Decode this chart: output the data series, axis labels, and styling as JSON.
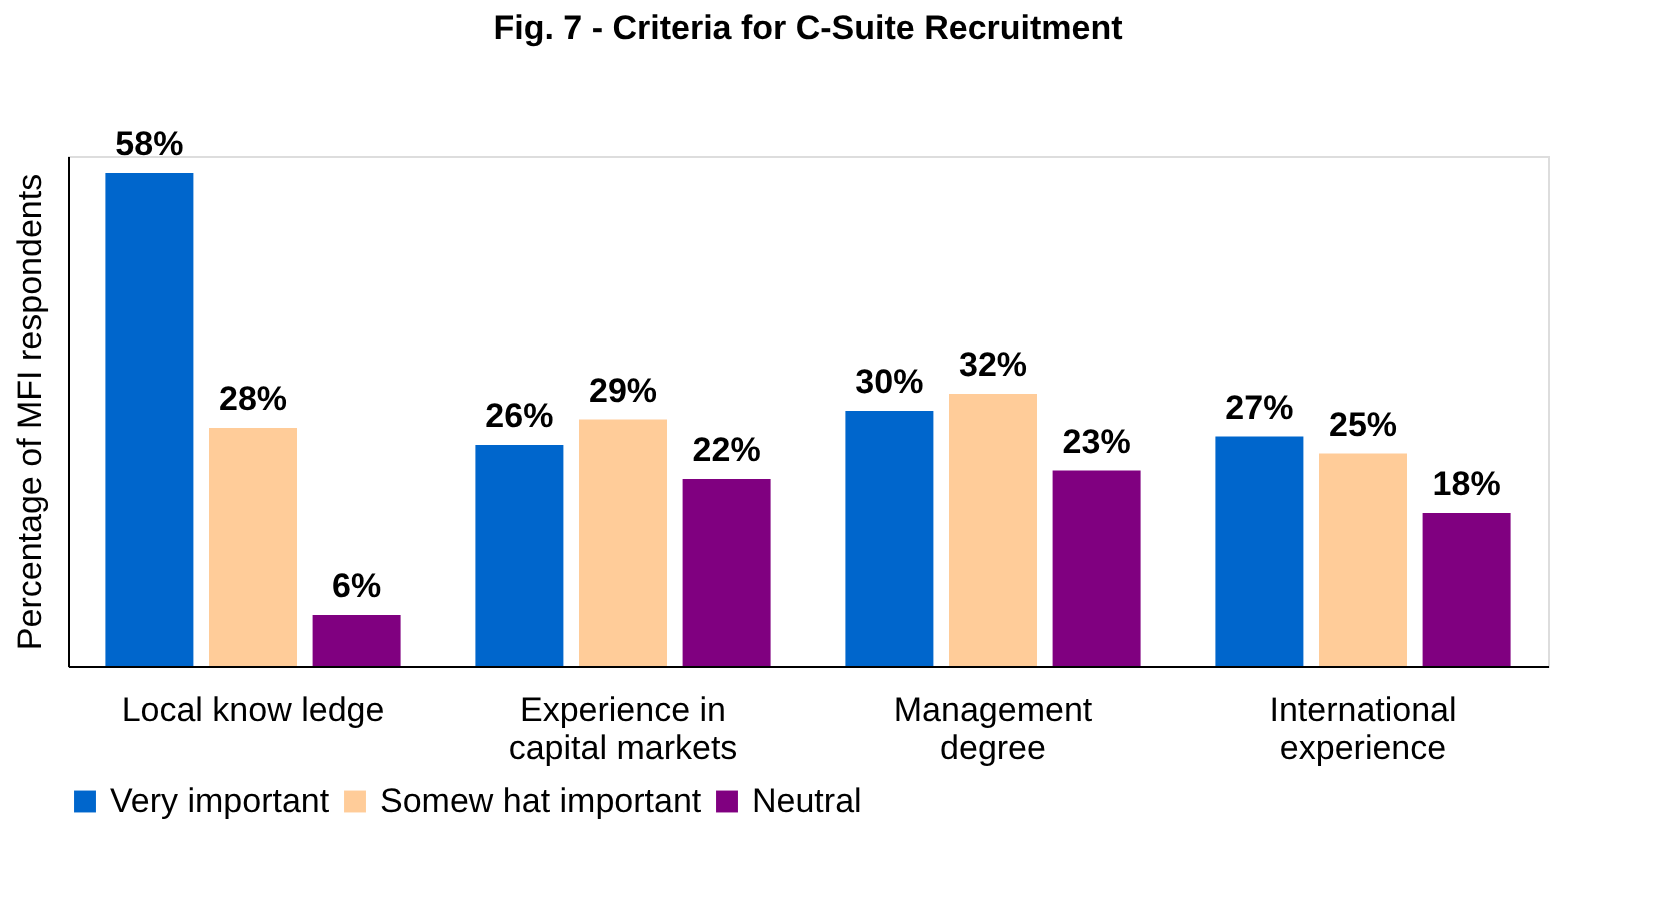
{
  "chart_data": {
    "type": "bar",
    "title": "Fig. 7 - Criteria for C-Suite Recruitment",
    "ylabel": "Percentage of MFI respondents",
    "categories": [
      "Local know ledge",
      "Experience in capital markets",
      "Management degree",
      "International experience"
    ],
    "series": [
      {
        "name": "Very important",
        "color": "#0066cc",
        "values": [
          58,
          26,
          30,
          27
        ],
        "value_labels": [
          "58%",
          "26%",
          "30%",
          "27%"
        ]
      },
      {
        "name": "Somew hat important",
        "color": "#ffcc99",
        "values": [
          28,
          29,
          32,
          25
        ],
        "value_labels": [
          "28%",
          "29%",
          "32%",
          "25%"
        ]
      },
      {
        "name": "Neutral",
        "color": "#800080",
        "values": [
          6,
          22,
          23,
          18
        ],
        "value_labels": [
          "6%",
          "22%",
          "23%",
          "18%"
        ]
      }
    ],
    "legend": "bottom",
    "grid": false,
    "tick_labels": "x"
  }
}
